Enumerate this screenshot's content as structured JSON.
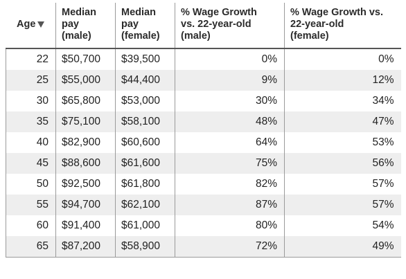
{
  "table": {
    "headers": {
      "age": "Age",
      "male_pay": [
        "Median",
        "pay",
        "(male)"
      ],
      "female_pay": [
        "Median",
        "pay",
        "(female)"
      ],
      "growth_male": [
        "% Wage Growth",
        "vs. 22-year-old",
        "(male)"
      ],
      "growth_female": [
        "% Wage Growth vs.",
        "22-year-old",
        "(female)"
      ]
    },
    "sort_icon": "sort-down-triangle-icon",
    "rows": [
      {
        "age": "22",
        "male": "$50,700",
        "female": "$39,500",
        "growth_male": "0%",
        "growth_female": "0%"
      },
      {
        "age": "25",
        "male": "$55,000",
        "female": "$44,400",
        "growth_male": "9%",
        "growth_female": "12%"
      },
      {
        "age": "30",
        "male": "$65,800",
        "female": "$53,000",
        "growth_male": "30%",
        "growth_female": "34%"
      },
      {
        "age": "35",
        "male": "$75,100",
        "female": "$58,100",
        "growth_male": "48%",
        "growth_female": "47%"
      },
      {
        "age": "40",
        "male": "$82,900",
        "female": "$60,600",
        "growth_male": "64%",
        "growth_female": "53%"
      },
      {
        "age": "45",
        "male": "$88,600",
        "female": "$61,600",
        "growth_male": "75%",
        "growth_female": "56%"
      },
      {
        "age": "50",
        "male": "$92,500",
        "female": "$61,800",
        "growth_male": "82%",
        "growth_female": "57%"
      },
      {
        "age": "55",
        "male": "$94,700",
        "female": "$62,100",
        "growth_male": "87%",
        "growth_female": "57%"
      },
      {
        "age": "60",
        "male": "$91,400",
        "female": "$61,000",
        "growth_male": "80%",
        "growth_female": "54%"
      },
      {
        "age": "65",
        "male": "$87,200",
        "female": "$58,900",
        "growth_male": "72%",
        "growth_female": "49%"
      }
    ]
  }
}
